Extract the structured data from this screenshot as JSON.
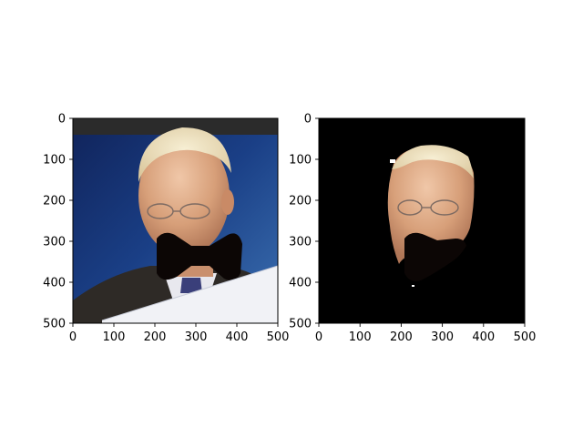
{
  "panels": [
    {
      "id": "left",
      "kind": "original-photo",
      "content": "portrait of older man with masked bow-tie-shaped occlusion over mouth area",
      "xticks": [
        "0",
        "100",
        "200",
        "300",
        "400",
        "500"
      ],
      "yticks": [
        "0",
        "100",
        "200",
        "300",
        "400",
        "500"
      ]
    },
    {
      "id": "right",
      "kind": "segmented-photo",
      "content": "face-only segmentation on black background with dark occlusion blob",
      "xticks": [
        "0",
        "100",
        "200",
        "300",
        "400",
        "500"
      ],
      "yticks": [
        "0",
        "100",
        "200",
        "300",
        "400",
        "500"
      ]
    }
  ],
  "colors": {
    "background": "#ffffff",
    "axes_frame": "#000000",
    "occluder": "#0c0605",
    "blue_backdrop": "#1a3f86",
    "skin": "#d9a27c",
    "hair": "#e9dcbc",
    "paper": "#f1f2f6"
  }
}
